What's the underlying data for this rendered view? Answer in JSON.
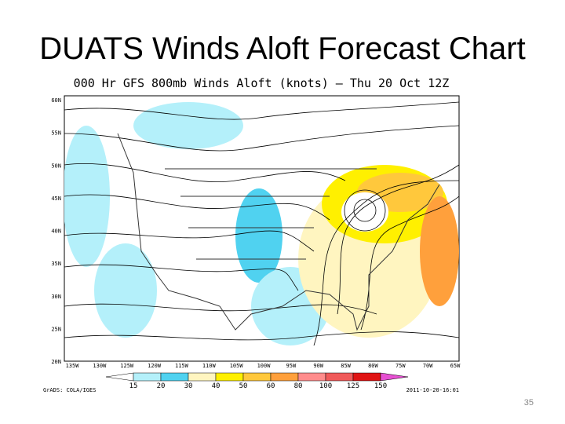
{
  "slide": {
    "title": "DUATS Winds Aloft Forecast Chart",
    "page_number": "35"
  },
  "map": {
    "title": "000 Hr GFS 800mb Winds Aloft (knots) – Thu 20 Oct 12Z",
    "lat_labels": [
      "60N",
      "55N",
      "50N",
      "45N",
      "40N",
      "35N",
      "30N",
      "25N",
      "20N"
    ],
    "lon_labels": [
      "135W",
      "130W",
      "125W",
      "120W",
      "115W",
      "110W",
      "105W",
      "100W",
      "95W",
      "90W",
      "85W",
      "80W",
      "75W",
      "70W",
      "65W"
    ],
    "colorbar": {
      "labels": [
        "15",
        "20",
        "30",
        "40",
        "50",
        "60",
        "80",
        "100",
        "125",
        "150"
      ],
      "colors": [
        "#ffffff",
        "#b4f0fa",
        "#50d2f0",
        "#fff5c0",
        "#fff000",
        "#ffc83c",
        "#ffa03c",
        "#ff8c8c",
        "#f05a5a",
        "#e01414",
        "#e650d2"
      ]
    },
    "credit": "GrADS: COLA/IGES",
    "timestamp": "2011-10-20-16:01"
  }
}
